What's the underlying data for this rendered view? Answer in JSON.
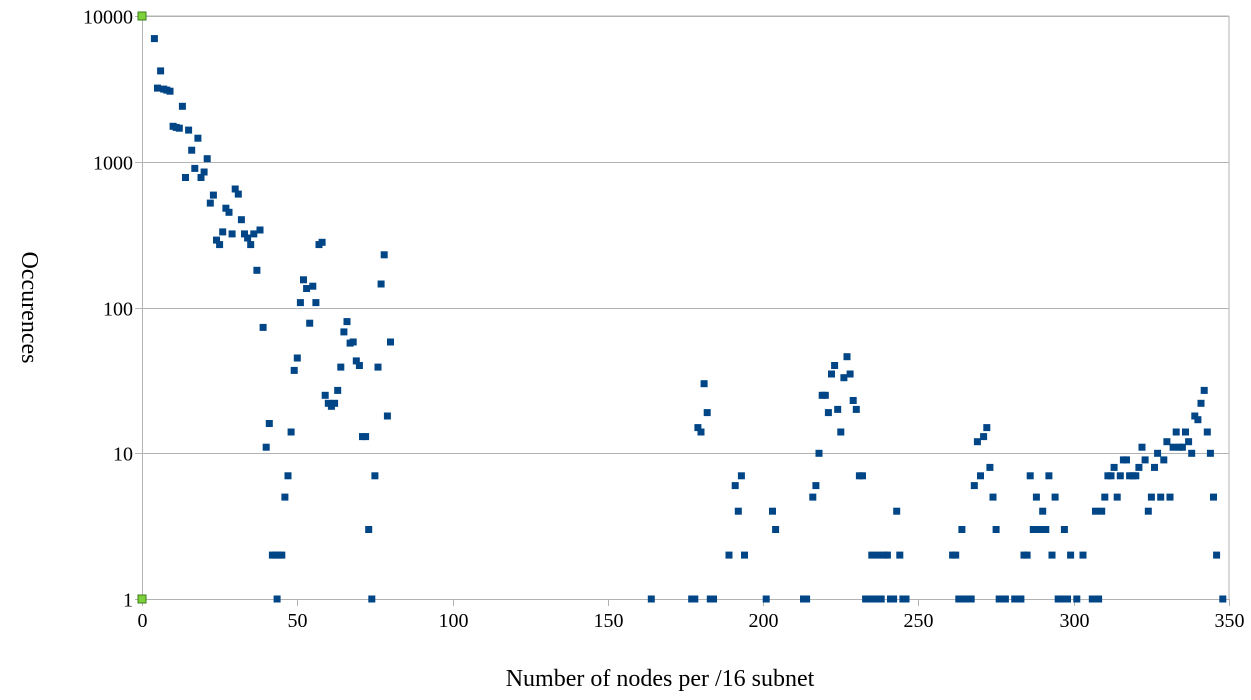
{
  "chart_data": {
    "type": "scatter",
    "title": "",
    "xlabel": "Number of nodes per /16 subnet",
    "ylabel": "Occurences",
    "xlim": [
      0,
      350
    ],
    "ylim": [
      1,
      10000
    ],
    "yscale": "log",
    "xticks": [
      "0",
      "50",
      "100",
      "150",
      "200",
      "250",
      "300",
      "350"
    ],
    "yticks": [
      "1",
      "10",
      "100",
      "1000",
      "10000"
    ],
    "grid": "horizontal",
    "legend": "none",
    "marker_color": "#004586",
    "axis_endpoint_color": "#7fd13b",
    "series": [
      {
        "points": [
          [
            4,
            7000
          ],
          [
            5,
            3200
          ],
          [
            6,
            4200
          ],
          [
            7,
            3150
          ],
          [
            8,
            3100
          ],
          [
            9,
            3050
          ],
          [
            10,
            1750
          ],
          [
            11,
            1720
          ],
          [
            12,
            1700
          ],
          [
            13,
            2400
          ],
          [
            14,
            780
          ],
          [
            15,
            1650
          ],
          [
            16,
            1200
          ],
          [
            17,
            900
          ],
          [
            18,
            1450
          ],
          [
            19,
            780
          ],
          [
            20,
            850
          ],
          [
            21,
            1050
          ],
          [
            22,
            520
          ],
          [
            23,
            590
          ],
          [
            24,
            290
          ],
          [
            25,
            270
          ],
          [
            26,
            330
          ],
          [
            27,
            480
          ],
          [
            28,
            450
          ],
          [
            29,
            320
          ],
          [
            30,
            650
          ],
          [
            31,
            600
          ],
          [
            32,
            400
          ],
          [
            33,
            320
          ],
          [
            34,
            300
          ],
          [
            35,
            270
          ],
          [
            36,
            320
          ],
          [
            37,
            180
          ],
          [
            38,
            340
          ],
          [
            39,
            73
          ],
          [
            40,
            11
          ],
          [
            41,
            16
          ],
          [
            42,
            2
          ],
          [
            43,
            2
          ],
          [
            43.5,
            1
          ],
          [
            44,
            2
          ],
          [
            45,
            2
          ],
          [
            46,
            5
          ],
          [
            47,
            7
          ],
          [
            48,
            14
          ],
          [
            49,
            37
          ],
          [
            50,
            45
          ],
          [
            51,
            108
          ],
          [
            52,
            155
          ],
          [
            53,
            135
          ],
          [
            54,
            78
          ],
          [
            55,
            140
          ],
          [
            56,
            108
          ],
          [
            57,
            270
          ],
          [
            58,
            280
          ],
          [
            59,
            25
          ],
          [
            60,
            22
          ],
          [
            61,
            21
          ],
          [
            62,
            22
          ],
          [
            63,
            27
          ],
          [
            64,
            39
          ],
          [
            65,
            68
          ],
          [
            66,
            80
          ],
          [
            67,
            57
          ],
          [
            68,
            58
          ],
          [
            69,
            43
          ],
          [
            70,
            40
          ],
          [
            71,
            13
          ],
          [
            72,
            13
          ],
          [
            73,
            3
          ],
          [
            74,
            1
          ],
          [
            75,
            7
          ],
          [
            76,
            39
          ],
          [
            77,
            145
          ],
          [
            78,
            230
          ],
          [
            79,
            18
          ],
          [
            80,
            58
          ],
          [
            164,
            1
          ],
          [
            177,
            1
          ],
          [
            178,
            1
          ],
          [
            179,
            15
          ],
          [
            180,
            14
          ],
          [
            181,
            30
          ],
          [
            182,
            19
          ],
          [
            183,
            1
          ],
          [
            184,
            1
          ],
          [
            189,
            2
          ],
          [
            191,
            6
          ],
          [
            192,
            4
          ],
          [
            193,
            7
          ],
          [
            194,
            2
          ],
          [
            201,
            1
          ],
          [
            203,
            4
          ],
          [
            204,
            3
          ],
          [
            213,
            1
          ],
          [
            214,
            1
          ],
          [
            216,
            5
          ],
          [
            217,
            6
          ],
          [
            218,
            10
          ],
          [
            219,
            25
          ],
          [
            220,
            25
          ],
          [
            221,
            19
          ],
          [
            222,
            35
          ],
          [
            223,
            40
          ],
          [
            224,
            20
          ],
          [
            225,
            14
          ],
          [
            226,
            33
          ],
          [
            227,
            46
          ],
          [
            228,
            35
          ],
          [
            229,
            23
          ],
          [
            230,
            20
          ],
          [
            231,
            7
          ],
          [
            232,
            7
          ],
          [
            233,
            1
          ],
          [
            234,
            1
          ],
          [
            235,
            2
          ],
          [
            236,
            1
          ],
          [
            237,
            2
          ],
          [
            238,
            1
          ],
          [
            239,
            2
          ],
          [
            240,
            2
          ],
          [
            241,
            1
          ],
          [
            242,
            1
          ],
          [
            243,
            4
          ],
          [
            244,
            2
          ],
          [
            245,
            1
          ],
          [
            246,
            1
          ],
          [
            261,
            2
          ],
          [
            262,
            2
          ],
          [
            263,
            1
          ],
          [
            264,
            3
          ],
          [
            265,
            1
          ],
          [
            266,
            1
          ],
          [
            267,
            1
          ],
          [
            268,
            6
          ],
          [
            269,
            12
          ],
          [
            270,
            7
          ],
          [
            271,
            13
          ],
          [
            272,
            15
          ],
          [
            273,
            8
          ],
          [
            274,
            5
          ],
          [
            275,
            3
          ],
          [
            276,
            1
          ],
          [
            277,
            1
          ],
          [
            278,
            1
          ],
          [
            281,
            1
          ],
          [
            282,
            1
          ],
          [
            283,
            1
          ],
          [
            284,
            2
          ],
          [
            285,
            2
          ],
          [
            286,
            7
          ],
          [
            287,
            3
          ],
          [
            288,
            5
          ],
          [
            289,
            3
          ],
          [
            290,
            4
          ],
          [
            291,
            3
          ],
          [
            292,
            7
          ],
          [
            293,
            2
          ],
          [
            294,
            5
          ],
          [
            295,
            1
          ],
          [
            296,
            1
          ],
          [
            297,
            3
          ],
          [
            298,
            1
          ],
          [
            299,
            2
          ],
          [
            301,
            1
          ],
          [
            303,
            2
          ],
          [
            306,
            1
          ],
          [
            307,
            4
          ],
          [
            308,
            1
          ],
          [
            309,
            4
          ],
          [
            310,
            5
          ],
          [
            311,
            7
          ],
          [
            312,
            7
          ],
          [
            313,
            8
          ],
          [
            314,
            5
          ],
          [
            315,
            7
          ],
          [
            316,
            9
          ],
          [
            317,
            9
          ],
          [
            318,
            7
          ],
          [
            319,
            7
          ],
          [
            320,
            7
          ],
          [
            321,
            8
          ],
          [
            322,
            11
          ],
          [
            323,
            9
          ],
          [
            324,
            4
          ],
          [
            325,
            5
          ],
          [
            326,
            8
          ],
          [
            327,
            10
          ],
          [
            328,
            5
          ],
          [
            329,
            9
          ],
          [
            330,
            12
          ],
          [
            331,
            5
          ],
          [
            332,
            11
          ],
          [
            333,
            14
          ],
          [
            334,
            11
          ],
          [
            335,
            11
          ],
          [
            336,
            14
          ],
          [
            337,
            12
          ],
          [
            338,
            10
          ],
          [
            339,
            18
          ],
          [
            340,
            17
          ],
          [
            341,
            22
          ],
          [
            342,
            27
          ],
          [
            343,
            14
          ],
          [
            344,
            10
          ],
          [
            345,
            5
          ],
          [
            346,
            2
          ],
          [
            348,
            1
          ]
        ]
      }
    ]
  }
}
